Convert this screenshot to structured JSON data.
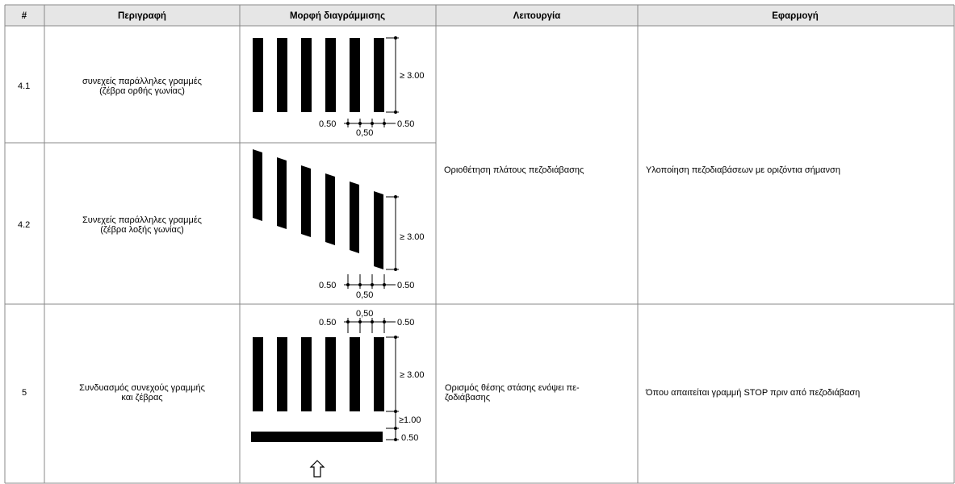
{
  "headers": [
    "#",
    "Περιγραφή",
    "Μορφή διαγράμμισης",
    "Λειτουργία",
    "Εφαρμογή"
  ],
  "rows": [
    {
      "num": "4.1",
      "desc_line1": "συνεχείς παράλληλες γραμμές",
      "desc_line2": "(ζέβρα ορθής γωνίας)",
      "dims": {
        "height": "≥ 3.00",
        "left": "0.50",
        "mid": "0,50",
        "right": "0.50"
      }
    },
    {
      "num": "4.2",
      "desc_line1": "Συνεχείς παράλληλες γραμμές",
      "desc_line2": "(ζέβρα λοξής γωνίας)",
      "dims": {
        "height": "≥ 3.00",
        "left": "0.50",
        "mid": "0,50",
        "right": "0.50"
      }
    },
    {
      "num": "5",
      "desc_line1": "Συνδυασμός συνεχούς γραμμής",
      "desc_line2": "και ζέβρας",
      "dims": {
        "height": "≥ 3.00",
        "left": "0.50",
        "mid": "0,50",
        "right": "0.50",
        "gap": "≥1.00",
        "stop": "0.50"
      }
    }
  ],
  "function_4": "Οριοθέτηση πλάτους πεζοδιάβασης",
  "application_4": "Υλοποίηση πεζοδιαβάσεων με οριζόντια σήμανση",
  "function_5_line1": "Ορισμός θέσης στάσης ενόψει πε-",
  "function_5_line2": "ζοδιάβασης",
  "application_5": "Όπου απαιτείται γραμμή STOP πριν από πεζοδιάβαση",
  "colors": {
    "header_bg": "#e6e6e6",
    "ink": "#000000",
    "grid": "#888888"
  },
  "icons": {
    "direction_arrow": "up-arrow-icon"
  }
}
